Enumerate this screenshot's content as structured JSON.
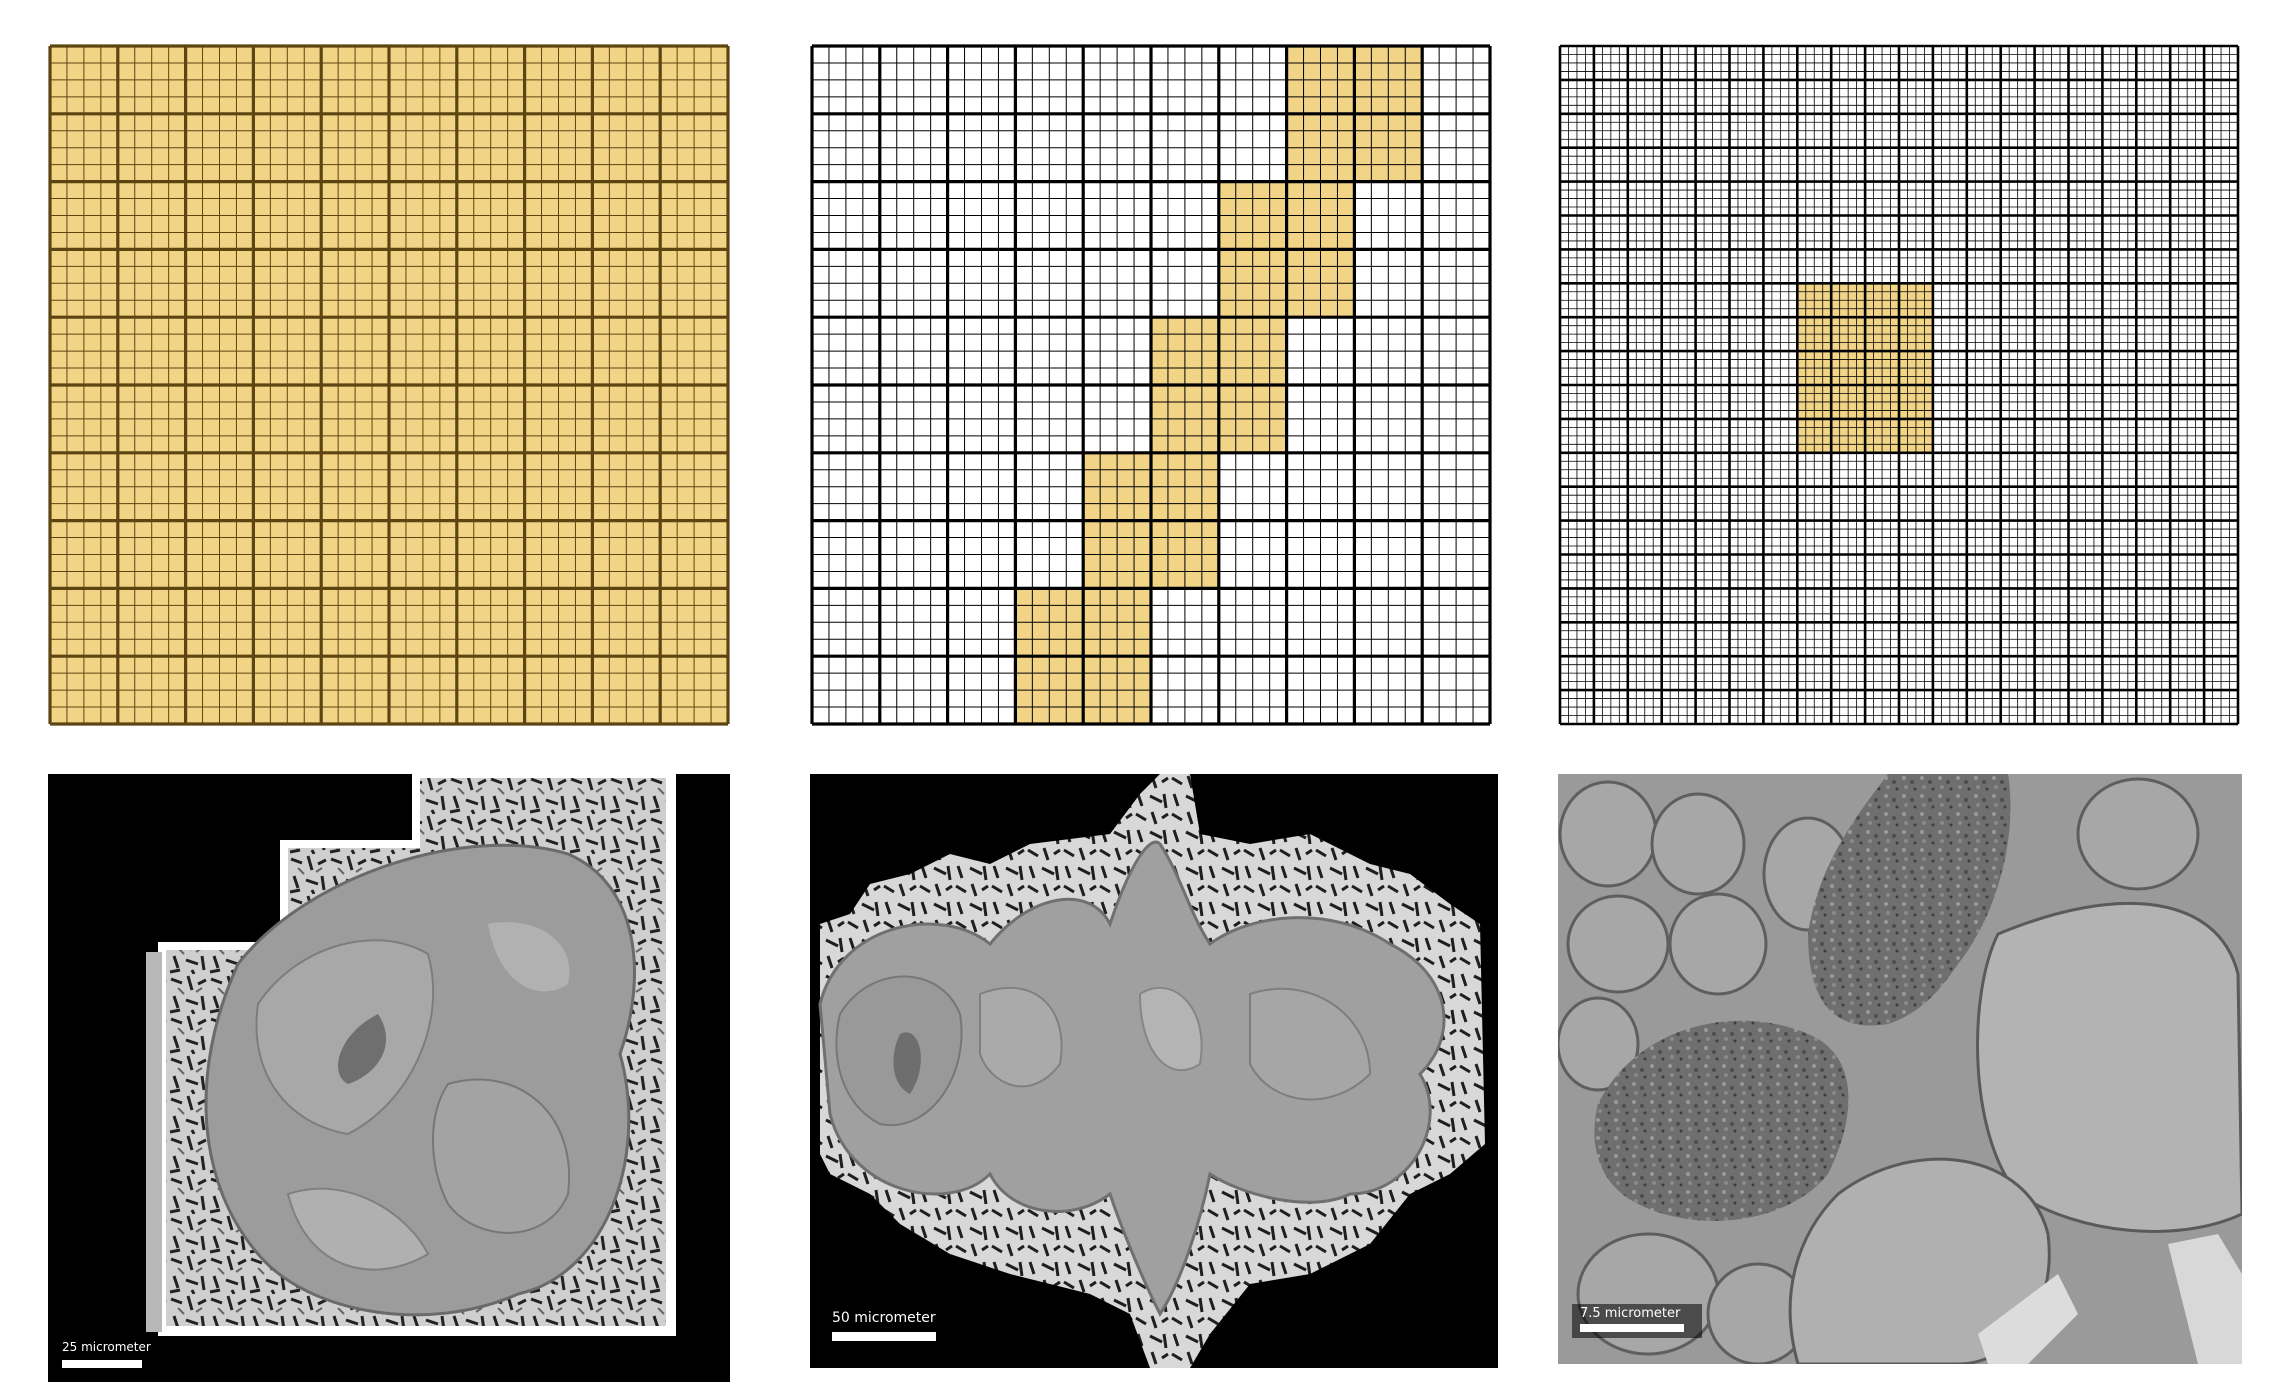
{
  "figure": {
    "grids": [
      {
        "id": "grid-full",
        "coarse_divisions": 10,
        "fine_per_coarse": 4,
        "highlight_color": "#f2d487",
        "highlight_cells": "all"
      },
      {
        "id": "grid-diagonal",
        "coarse_divisions": 10,
        "fine_per_coarse": 4,
        "highlight_color": "#f2d487",
        "highlight_cells": [
          [
            7,
            0
          ],
          [
            8,
            0
          ],
          [
            7,
            1
          ],
          [
            8,
            1
          ],
          [
            6,
            2
          ],
          [
            7,
            2
          ],
          [
            6,
            3
          ],
          [
            7,
            3
          ],
          [
            5,
            4
          ],
          [
            6,
            4
          ],
          [
            5,
            5
          ],
          [
            6,
            5
          ],
          [
            4,
            6
          ],
          [
            5,
            6
          ],
          [
            4,
            7
          ],
          [
            5,
            7
          ],
          [
            3,
            8
          ],
          [
            4,
            8
          ],
          [
            3,
            9
          ],
          [
            4,
            9
          ]
        ]
      },
      {
        "id": "grid-center",
        "coarse_divisions": 20,
        "fine_per_coarse": 4,
        "highlight_color": "#f2d487",
        "highlight_cells": [
          [
            7,
            7
          ],
          [
            8,
            7
          ],
          [
            9,
            7
          ],
          [
            10,
            7
          ],
          [
            7,
            8
          ],
          [
            8,
            8
          ],
          [
            9,
            8
          ],
          [
            10,
            8
          ],
          [
            7,
            9
          ],
          [
            8,
            9
          ],
          [
            9,
            9
          ],
          [
            10,
            9
          ],
          [
            7,
            10
          ],
          [
            8,
            10
          ],
          [
            9,
            10
          ],
          [
            10,
            10
          ],
          [
            7,
            11
          ],
          [
            8,
            11
          ],
          [
            9,
            11
          ],
          [
            10,
            11
          ]
        ]
      }
    ],
    "images": [
      {
        "id": "em-whole-section",
        "description_icon": "em-micrograph-low-res",
        "scale_label": "25 micrometer"
      },
      {
        "id": "em-diagonal-strip",
        "description_icon": "em-micrograph-mid-res",
        "scale_label": "50 micrometer"
      },
      {
        "id": "em-center-zoom",
        "description_icon": "em-micrograph-high-res",
        "scale_label": "7.5 micrometer"
      }
    ]
  }
}
